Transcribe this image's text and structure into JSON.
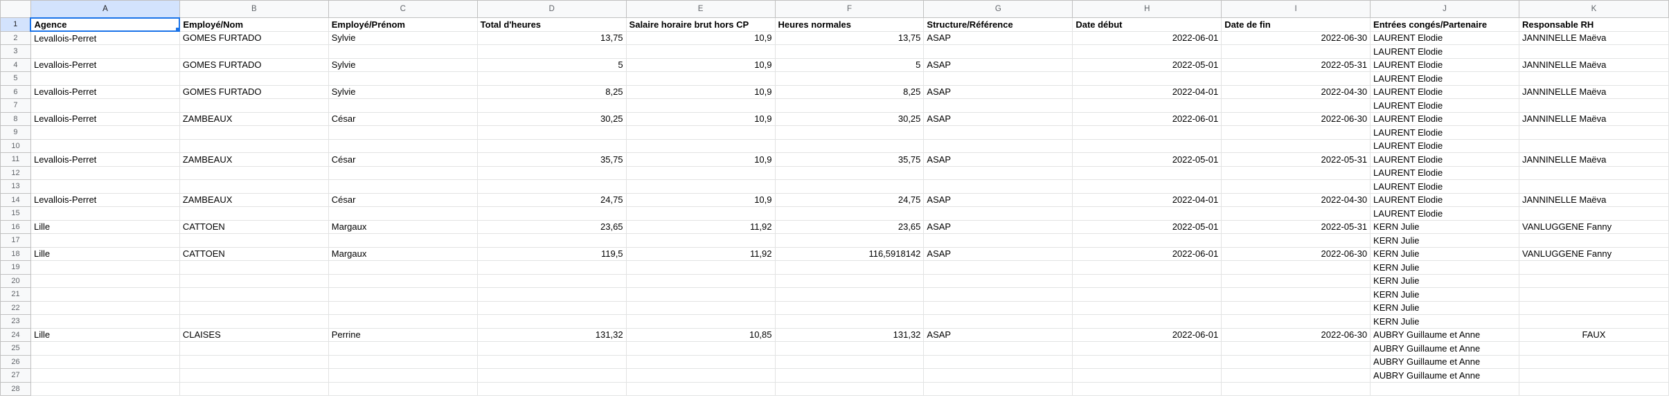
{
  "columns": [
    "A",
    "B",
    "C",
    "D",
    "E",
    "F",
    "G",
    "H",
    "I",
    "J",
    "K"
  ],
  "selected_cell": "A1",
  "rows": [
    {
      "n": "1",
      "cells": [
        "Agence",
        "Employé/Nom",
        "Employé/Prénom",
        "Total d'heures",
        "Salaire horaire brut hors CP",
        "Heures normales",
        "Structure/Référence",
        "Date début",
        "Date de fin",
        "Entrées congés/Partenaire",
        "Responsable RH"
      ]
    },
    {
      "n": "2",
      "cells": [
        "Levallois-Perret",
        "GOMES FURTADO",
        "Sylvie",
        "13,75",
        "10,9",
        "13,75",
        "ASAP",
        "2022-06-01",
        "2022-06-30",
        "LAURENT Elodie",
        "JANNINELLE Maëva"
      ]
    },
    {
      "n": "3",
      "cells": [
        "",
        "",
        "",
        "",
        "",
        "",
        "",
        "",
        "",
        "LAURENT Elodie",
        ""
      ]
    },
    {
      "n": "4",
      "cells": [
        "Levallois-Perret",
        "GOMES FURTADO",
        "Sylvie",
        "5",
        "10,9",
        "5",
        "ASAP",
        "2022-05-01",
        "2022-05-31",
        "LAURENT Elodie",
        "JANNINELLE Maëva"
      ]
    },
    {
      "n": "5",
      "cells": [
        "",
        "",
        "",
        "",
        "",
        "",
        "",
        "",
        "",
        "LAURENT Elodie",
        ""
      ]
    },
    {
      "n": "6",
      "cells": [
        "Levallois-Perret",
        "GOMES FURTADO",
        "Sylvie",
        "8,25",
        "10,9",
        "8,25",
        "ASAP",
        "2022-04-01",
        "2022-04-30",
        "LAURENT Elodie",
        "JANNINELLE Maëva"
      ]
    },
    {
      "n": "7",
      "cells": [
        "",
        "",
        "",
        "",
        "",
        "",
        "",
        "",
        "",
        "LAURENT Elodie",
        ""
      ]
    },
    {
      "n": "8",
      "cells": [
        "Levallois-Perret",
        "ZAMBEAUX",
        "César",
        "30,25",
        "10,9",
        "30,25",
        "ASAP",
        "2022-06-01",
        "2022-06-30",
        "LAURENT Elodie",
        "JANNINELLE Maëva"
      ]
    },
    {
      "n": "9",
      "cells": [
        "",
        "",
        "",
        "",
        "",
        "",
        "",
        "",
        "",
        "LAURENT Elodie",
        ""
      ]
    },
    {
      "n": "10",
      "cells": [
        "",
        "",
        "",
        "",
        "",
        "",
        "",
        "",
        "",
        "LAURENT Elodie",
        ""
      ]
    },
    {
      "n": "11",
      "cells": [
        "Levallois-Perret",
        "ZAMBEAUX",
        "César",
        "35,75",
        "10,9",
        "35,75",
        "ASAP",
        "2022-05-01",
        "2022-05-31",
        "LAURENT Elodie",
        "JANNINELLE Maëva"
      ]
    },
    {
      "n": "12",
      "cells": [
        "",
        "",
        "",
        "",
        "",
        "",
        "",
        "",
        "",
        "LAURENT Elodie",
        ""
      ]
    },
    {
      "n": "13",
      "cells": [
        "",
        "",
        "",
        "",
        "",
        "",
        "",
        "",
        "",
        "LAURENT Elodie",
        ""
      ]
    },
    {
      "n": "14",
      "cells": [
        "Levallois-Perret",
        "ZAMBEAUX",
        "César",
        "24,75",
        "10,9",
        "24,75",
        "ASAP",
        "2022-04-01",
        "2022-04-30",
        "LAURENT Elodie",
        "JANNINELLE Maëva"
      ]
    },
    {
      "n": "15",
      "cells": [
        "",
        "",
        "",
        "",
        "",
        "",
        "",
        "",
        "",
        "LAURENT Elodie",
        ""
      ]
    },
    {
      "n": "16",
      "cells": [
        "Lille",
        "CATTOEN",
        "Margaux",
        "23,65",
        "11,92",
        "23,65",
        "ASAP",
        "2022-05-01",
        "2022-05-31",
        "KERN Julie",
        "VANLUGGENE Fanny"
      ]
    },
    {
      "n": "17",
      "cells": [
        "",
        "",
        "",
        "",
        "",
        "",
        "",
        "",
        "",
        "KERN Julie",
        ""
      ]
    },
    {
      "n": "18",
      "cells": [
        "Lille",
        "CATTOEN",
        "Margaux",
        "119,5",
        "11,92",
        "116,5918142",
        "ASAP",
        "2022-06-01",
        "2022-06-30",
        "KERN Julie",
        "VANLUGGENE Fanny"
      ]
    },
    {
      "n": "19",
      "cells": [
        "",
        "",
        "",
        "",
        "",
        "",
        "",
        "",
        "",
        "KERN Julie",
        ""
      ]
    },
    {
      "n": "20",
      "cells": [
        "",
        "",
        "",
        "",
        "",
        "",
        "",
        "",
        "",
        "KERN Julie",
        ""
      ]
    },
    {
      "n": "21",
      "cells": [
        "",
        "",
        "",
        "",
        "",
        "",
        "",
        "",
        "",
        "KERN Julie",
        ""
      ]
    },
    {
      "n": "22",
      "cells": [
        "",
        "",
        "",
        "",
        "",
        "",
        "",
        "",
        "",
        "KERN Julie",
        ""
      ]
    },
    {
      "n": "23",
      "cells": [
        "",
        "",
        "",
        "",
        "",
        "",
        "",
        "",
        "",
        "KERN Julie",
        ""
      ]
    },
    {
      "n": "24",
      "cells": [
        "Lille",
        "CLAISES",
        "Perrine",
        "131,32",
        "10,85",
        "131,32",
        "ASAP",
        "2022-06-01",
        "2022-06-30",
        "AUBRY Guillaume et Anne",
        "FAUX"
      ]
    },
    {
      "n": "25",
      "cells": [
        "",
        "",
        "",
        "",
        "",
        "",
        "",
        "",
        "",
        "AUBRY Guillaume et Anne",
        ""
      ]
    },
    {
      "n": "26",
      "cells": [
        "",
        "",
        "",
        "",
        "",
        "",
        "",
        "",
        "",
        "AUBRY Guillaume et Anne",
        ""
      ]
    },
    {
      "n": "27",
      "cells": [
        "",
        "",
        "",
        "",
        "",
        "",
        "",
        "",
        "",
        "AUBRY Guillaume et Anne",
        ""
      ]
    },
    {
      "n": "28",
      "cells": [
        "",
        "",
        "",
        "",
        "",
        "",
        "",
        "",
        "",
        "",
        ""
      ]
    }
  ]
}
